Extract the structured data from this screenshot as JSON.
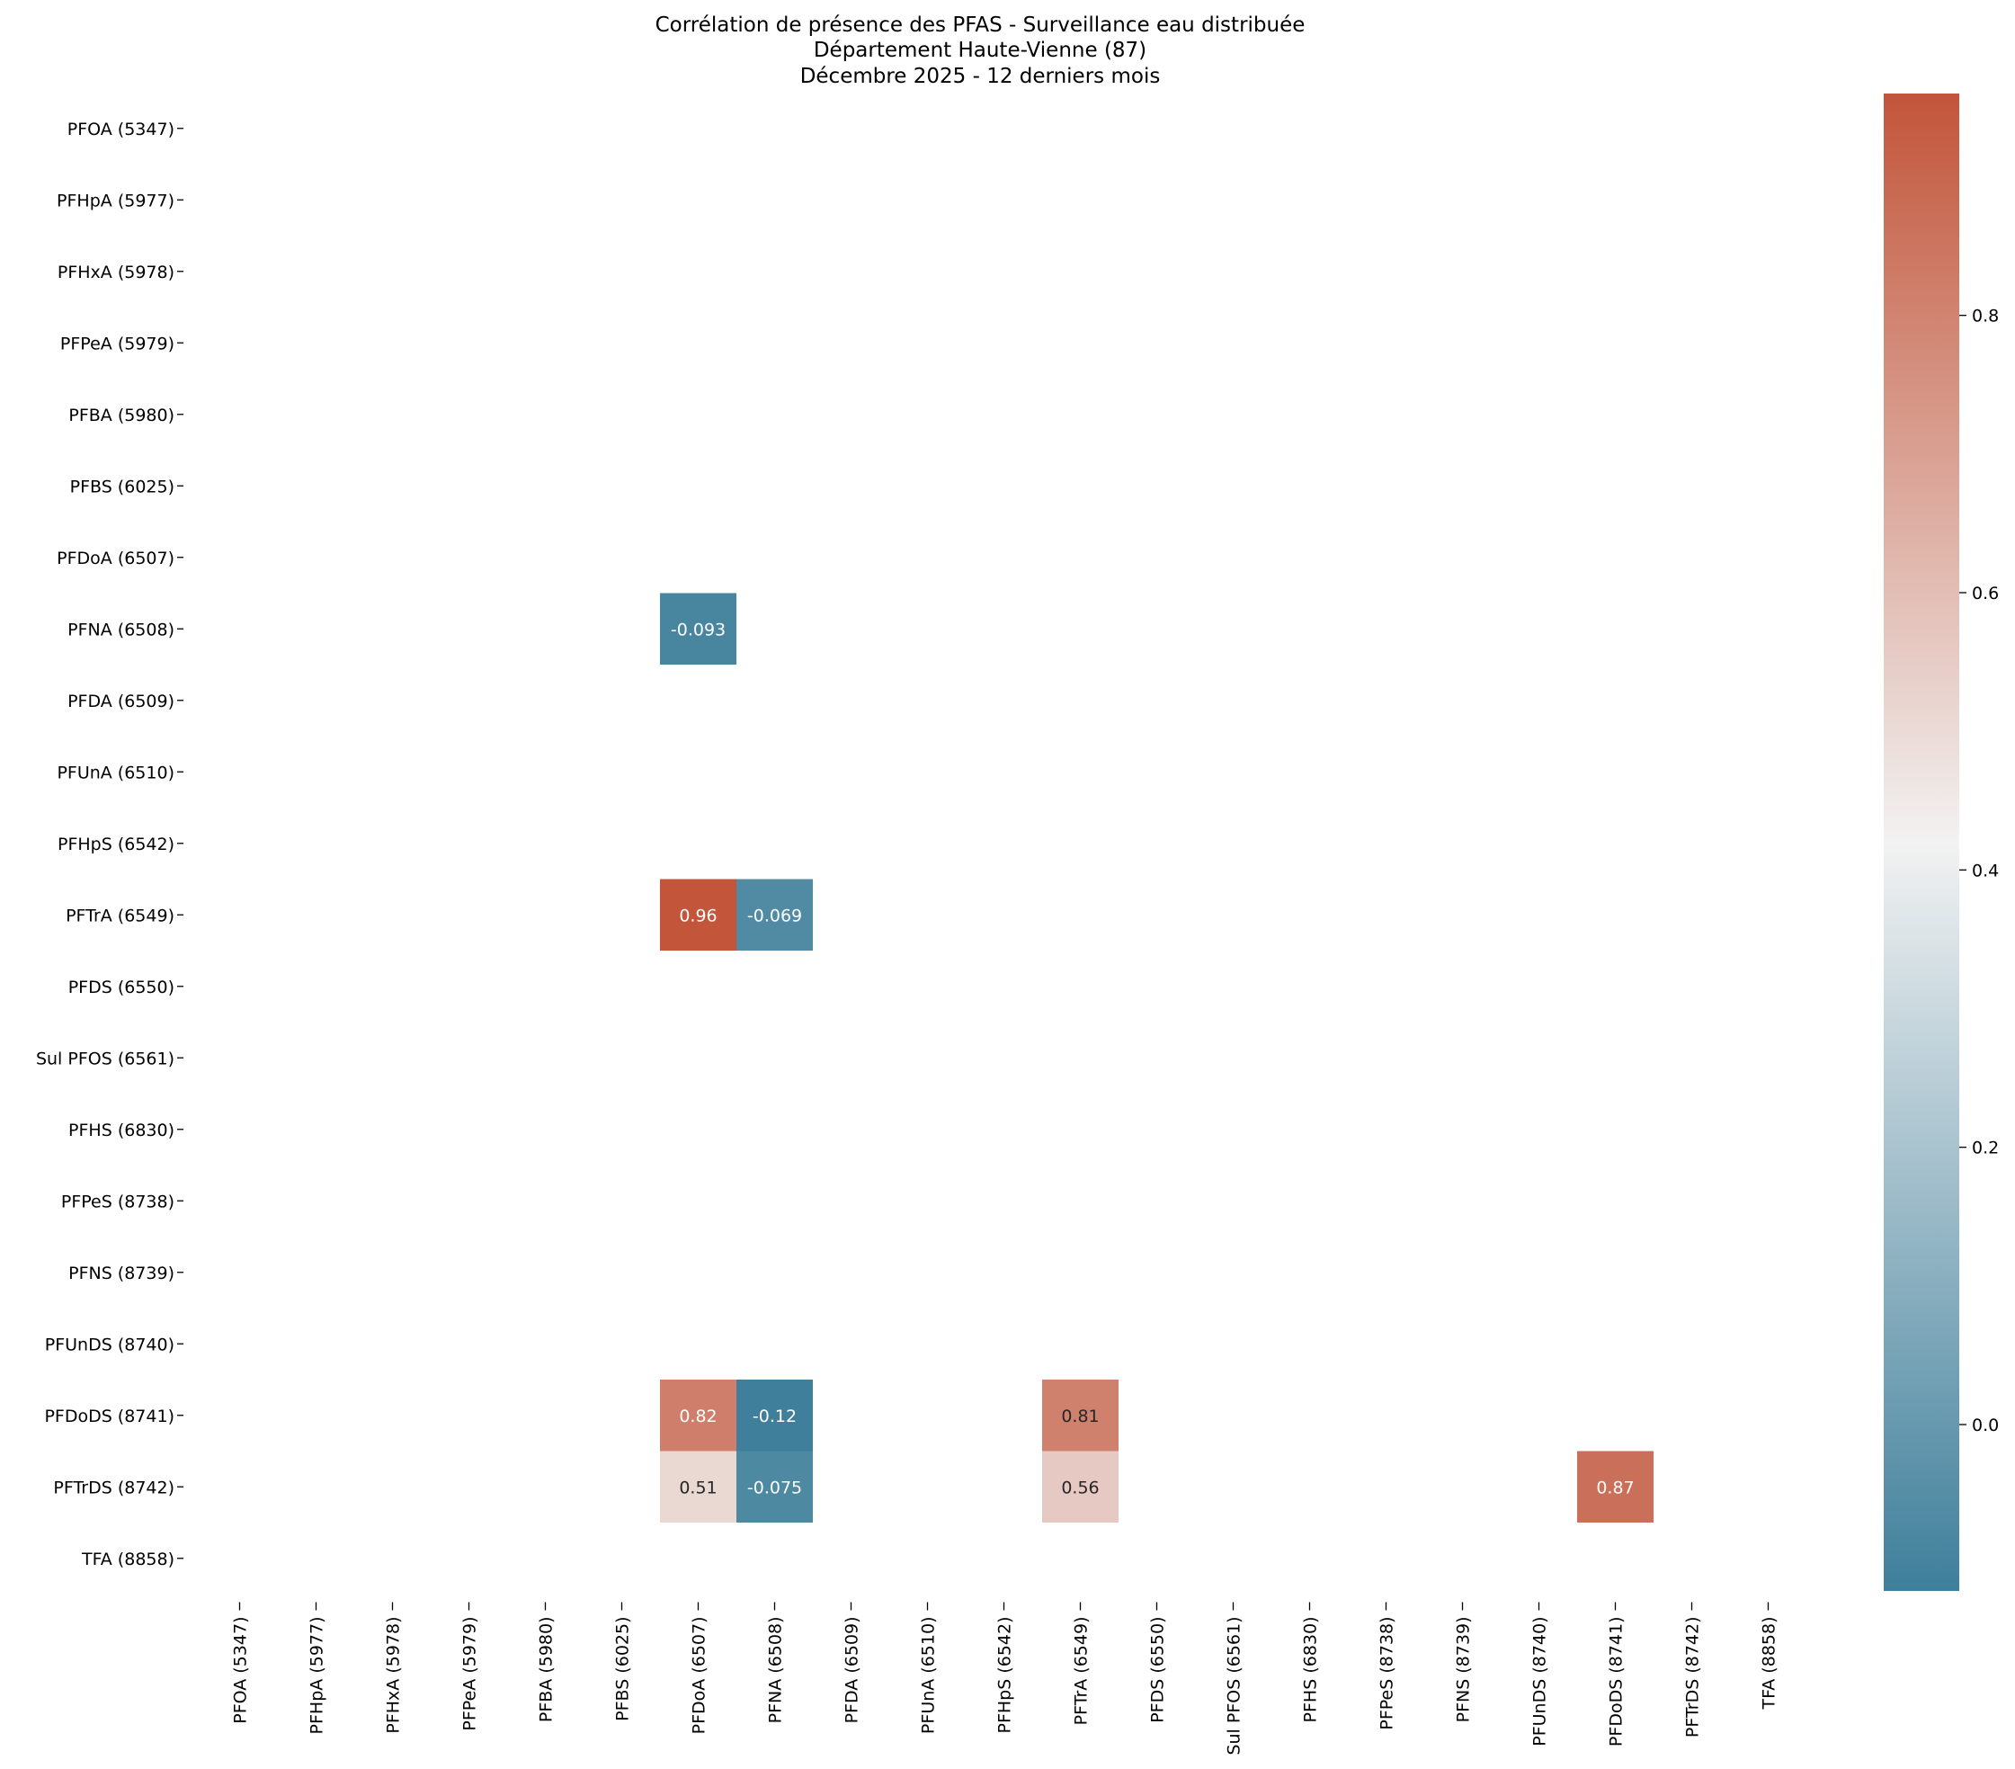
{
  "chart_data": {
    "type": "heatmap",
    "title_lines": [
      "Corrélation de présence des PFAS - Surveillance eau distribuée",
      "Département Haute-Vienne (87)",
      "Décembre 2025 - 12 derniers mois"
    ],
    "xlabel": "",
    "ylabel": "",
    "labels": [
      "PFOA (5347)",
      "PFHpA (5977)",
      "PFHxA (5978)",
      "PFPeA (5979)",
      "PFBA (5980)",
      "PFBS (6025)",
      "PFDoA (6507)",
      "PFNA (6508)",
      "PFDA (6509)",
      "PFUnA (6510)",
      "PFHpS (6542)",
      "PFTrA (6549)",
      "PFDS (6550)",
      "Sul PFOS (6561)",
      "PFHS (6830)",
      "PFPeS (8738)",
      "PFNS (8739)",
      "PFUnDS (8740)",
      "PFDoDS (8741)",
      "PFTrDS (8742)",
      "TFA (8858)"
    ],
    "cells": [
      {
        "row": "PFNA (6508)",
        "col": "PFDoA (6507)",
        "value": -0.093,
        "label": "-0.093"
      },
      {
        "row": "PFTrA (6549)",
        "col": "PFDoA (6507)",
        "value": 0.96,
        "label": "0.96"
      },
      {
        "row": "PFTrA (6549)",
        "col": "PFNA (6508)",
        "value": -0.069,
        "label": "-0.069"
      },
      {
        "row": "PFDoDS (8741)",
        "col": "PFDoA (6507)",
        "value": 0.82,
        "label": "0.82"
      },
      {
        "row": "PFDoDS (8741)",
        "col": "PFNA (6508)",
        "value": -0.12,
        "label": "-0.12"
      },
      {
        "row": "PFDoDS (8741)",
        "col": "PFTrA (6549)",
        "value": 0.81,
        "label": "0.81"
      },
      {
        "row": "PFTrDS (8742)",
        "col": "PFDoA (6507)",
        "value": 0.51,
        "label": "0.51"
      },
      {
        "row": "PFTrDS (8742)",
        "col": "PFNA (6508)",
        "value": -0.075,
        "label": "-0.075"
      },
      {
        "row": "PFTrDS (8742)",
        "col": "PFTrA (6549)",
        "value": 0.56,
        "label": "0.56"
      },
      {
        "row": "PFTrDS (8742)",
        "col": "PFDoDS (8741)",
        "value": 0.87,
        "label": "0.87"
      }
    ],
    "colorbar": {
      "vmin": -0.12,
      "vmax": 0.96,
      "ticks": [
        0.0,
        0.2,
        0.4,
        0.6,
        0.8
      ],
      "tick_labels": [
        "0.0",
        "0.2",
        "0.4",
        "0.6",
        "0.8"
      ],
      "color_low": "#3f7f9b",
      "color_mid": "#f2f2f2",
      "color_high": "#c2553a"
    },
    "grid": false,
    "legend": "colorbar-right"
  }
}
